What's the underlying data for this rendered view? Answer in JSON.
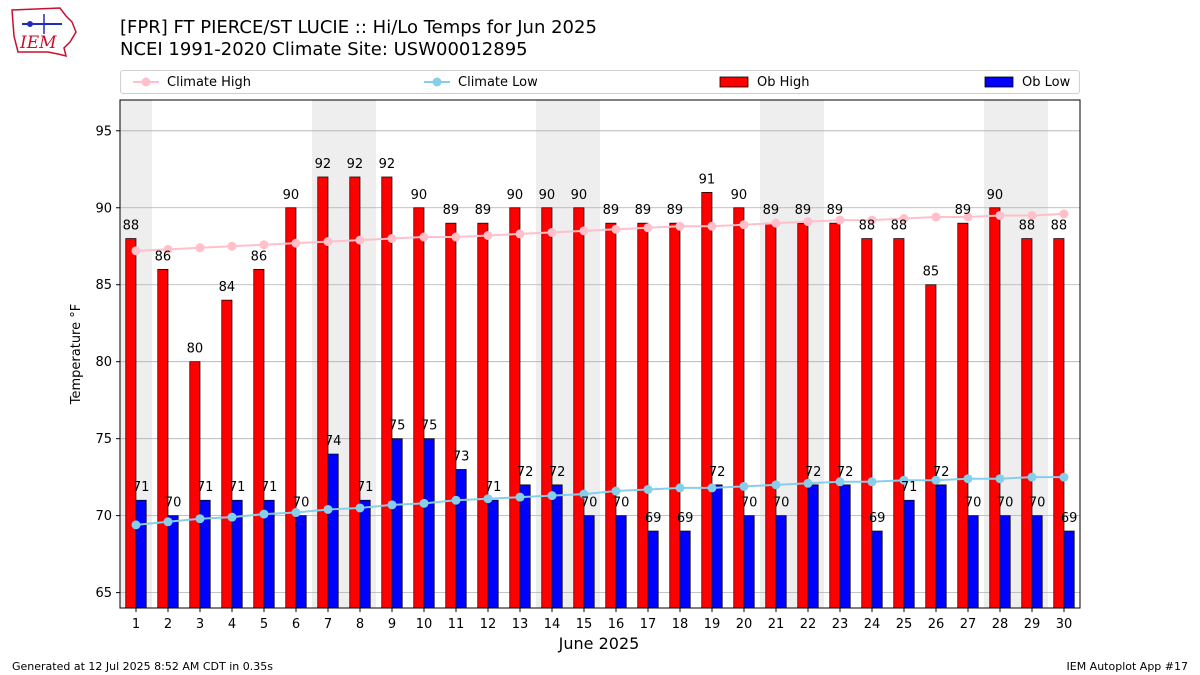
{
  "header": {
    "title_line1": "[FPR] FT PIERCE/ST LUCIE :: Hi/Lo Temps for Jun 2025",
    "title_line2": "NCEI 1991-2020 Climate Site: USW00012895",
    "logo_text": "IEM"
  },
  "footer": {
    "left": "Generated at 12 Jul 2025 8:52 AM CDT in 0.35s",
    "right": "IEM Autoplot App #17"
  },
  "colors": {
    "ob_high": "#ff0000",
    "ob_low": "#0000ff",
    "climate_high": "#ffc0cb",
    "climate_low": "#87ceeb",
    "weekend_shade": "#eeeeee",
    "grid": "#b0b0b0"
  },
  "chart_data": {
    "type": "bar",
    "xlabel": "June 2025",
    "ylabel": "Temperature °F",
    "ylim": [
      64,
      97
    ],
    "yticks": [
      65,
      70,
      75,
      80,
      85,
      90,
      95
    ],
    "grid": true,
    "legend_position": "top",
    "categories": [
      "1",
      "2",
      "3",
      "4",
      "5",
      "6",
      "7",
      "8",
      "9",
      "10",
      "11",
      "12",
      "13",
      "14",
      "15",
      "16",
      "17",
      "18",
      "19",
      "20",
      "21",
      "22",
      "23",
      "24",
      "25",
      "26",
      "27",
      "28",
      "29",
      "30"
    ],
    "shaded_days": [
      1,
      7,
      8,
      14,
      15,
      21,
      22,
      28,
      29
    ],
    "series": [
      {
        "name": "Ob High",
        "kind": "bar",
        "values": [
          88,
          86,
          80,
          84,
          86,
          90,
          92,
          92,
          92,
          90,
          89,
          89,
          90,
          90,
          90,
          89,
          89,
          89,
          91,
          90,
          89,
          89,
          89,
          88,
          88,
          85,
          89,
          90,
          88,
          88
        ]
      },
      {
        "name": "Ob Low",
        "kind": "bar",
        "values": [
          71,
          70,
          71,
          71,
          71,
          70,
          74,
          71,
          75,
          75,
          73,
          71,
          72,
          72,
          70,
          70,
          69,
          69,
          72,
          70,
          70,
          72,
          72,
          69,
          71,
          72,
          70,
          70,
          70,
          69
        ]
      },
      {
        "name": "Climate High",
        "kind": "line",
        "values": [
          87.2,
          87.3,
          87.4,
          87.5,
          87.6,
          87.7,
          87.8,
          87.9,
          88.0,
          88.1,
          88.1,
          88.2,
          88.3,
          88.4,
          88.5,
          88.6,
          88.7,
          88.8,
          88.8,
          88.9,
          89.0,
          89.1,
          89.2,
          89.2,
          89.3,
          89.4,
          89.4,
          89.5,
          89.5,
          89.6
        ]
      },
      {
        "name": "Climate Low",
        "kind": "line",
        "values": [
          69.4,
          69.6,
          69.8,
          69.9,
          70.1,
          70.2,
          70.4,
          70.5,
          70.7,
          70.8,
          71.0,
          71.1,
          71.2,
          71.3,
          71.4,
          71.6,
          71.7,
          71.8,
          71.8,
          71.9,
          72.0,
          72.1,
          72.2,
          72.2,
          72.3,
          72.3,
          72.4,
          72.4,
          72.5,
          72.5
        ]
      }
    ]
  }
}
